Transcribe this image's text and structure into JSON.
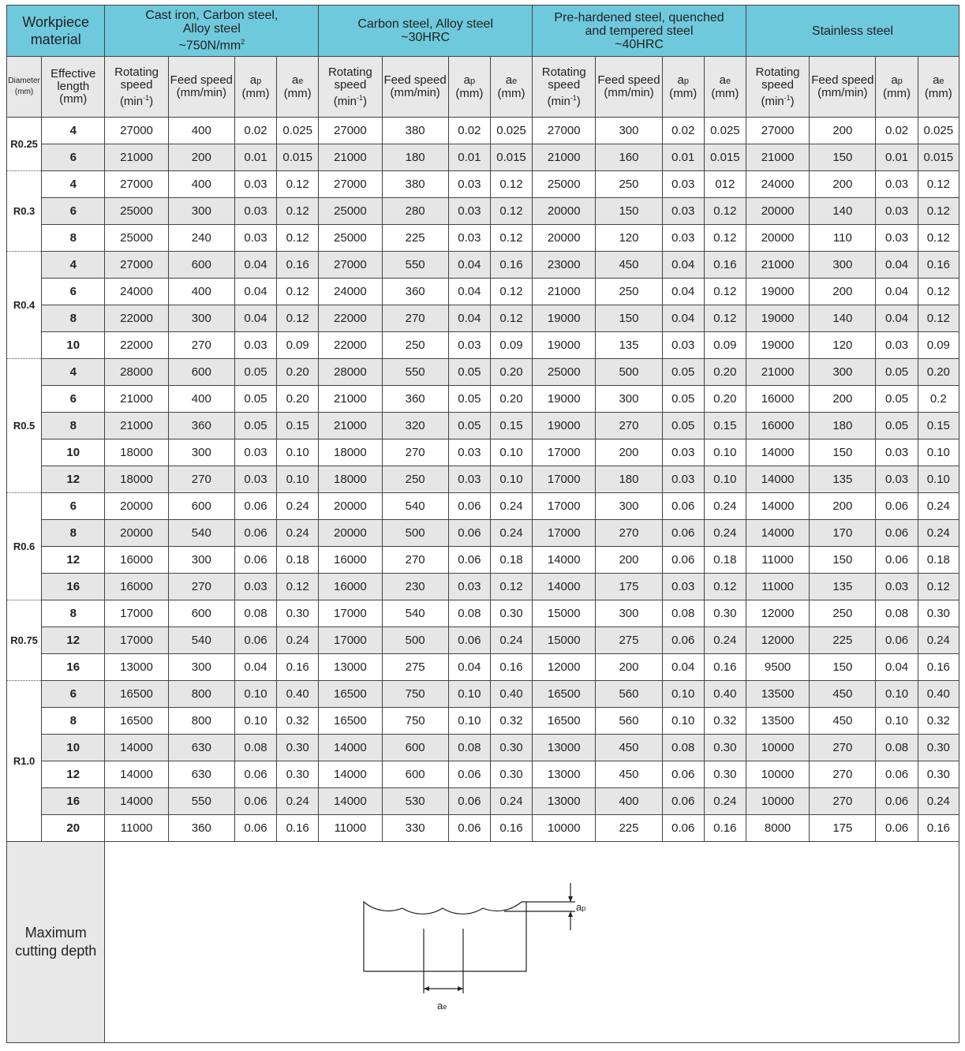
{
  "header": {
    "workpiece_label": "Workpiece material",
    "materials": [
      {
        "line1": "Cast iron, Carbon steel,",
        "line2": "Alloy steel",
        "line3": "~750N/mm",
        "sup": "2"
      },
      {
        "line1": "Carbon steel, Alloy steel",
        "line2": "~30HRC",
        "line3": "",
        "sup": ""
      },
      {
        "line1": "Pre-hardened steel, quenched",
        "line2": "and tempered steel",
        "line3": "~40HRC",
        "sup": ""
      },
      {
        "line1": "Stainless steel",
        "line2": "",
        "line3": "",
        "sup": ""
      }
    ],
    "diameter": "Diameter",
    "diameter_unit": "(mm)",
    "effective_length": "Effective length (mm)",
    "sub": {
      "rotating": "Rotating speed",
      "rotating_unit": "(min",
      "rotating_sup": "-1",
      "feed": "Feed speed",
      "feed_unit": "(mm/min)",
      "ap": "a",
      "ap_sub": "p",
      "ae": "a",
      "ae_sub": "e",
      "mm": "(mm)"
    }
  },
  "rows": [
    {
      "d": "R0.25",
      "l": "4",
      "v": [
        "27000",
        "400",
        "0.02",
        "0.025",
        "27000",
        "380",
        "0.02",
        "0.025",
        "27000",
        "300",
        "0.02",
        "0.025",
        "27000",
        "200",
        "0.02",
        "0.025"
      ]
    },
    {
      "d": "R0.25",
      "l": "6",
      "v": [
        "21000",
        "200",
        "0.01",
        "0.015",
        "21000",
        "180",
        "0.01",
        "0.015",
        "21000",
        "160",
        "0.01",
        "0.015",
        "21000",
        "150",
        "0.01",
        "0.015"
      ]
    },
    {
      "d": "R0.3",
      "l": "4",
      "v": [
        "27000",
        "400",
        "0.03",
        "0.12",
        "27000",
        "380",
        "0.03",
        "0.12",
        "25000",
        "250",
        "0.03",
        "012",
        "24000",
        "200",
        "0.03",
        "0.12"
      ]
    },
    {
      "d": "R0.3",
      "l": "6",
      "v": [
        "25000",
        "300",
        "0.03",
        "0.12",
        "25000",
        "280",
        "0.03",
        "0.12",
        "20000",
        "150",
        "0.03",
        "0.12",
        "20000",
        "140",
        "0.03",
        "0.12"
      ]
    },
    {
      "d": "R0.3",
      "l": "8",
      "v": [
        "25000",
        "240",
        "0.03",
        "0.12",
        "25000",
        "225",
        "0.03",
        "0.12",
        "20000",
        "120",
        "0.03",
        "0.12",
        "20000",
        "110",
        "0.03",
        "0.12"
      ]
    },
    {
      "d": "R0.4",
      "l": "4",
      "v": [
        "27000",
        "600",
        "0.04",
        "0.16",
        "27000",
        "550",
        "0.04",
        "0.16",
        "23000",
        "450",
        "0.04",
        "0.16",
        "21000",
        "300",
        "0.04",
        "0.16"
      ]
    },
    {
      "d": "R0.4",
      "l": "6",
      "v": [
        "24000",
        "400",
        "0.04",
        "0.12",
        "24000",
        "360",
        "0.04",
        "0.12",
        "21000",
        "250",
        "0.04",
        "0.12",
        "19000",
        "200",
        "0.04",
        "0.12"
      ]
    },
    {
      "d": "R0.4",
      "l": "8",
      "v": [
        "22000",
        "300",
        "0.04",
        "0.12",
        "22000",
        "270",
        "0.04",
        "0.12",
        "19000",
        "150",
        "0.04",
        "0.12",
        "19000",
        "140",
        "0.04",
        "0.12"
      ]
    },
    {
      "d": "R0.4",
      "l": "10",
      "v": [
        "22000",
        "270",
        "0.03",
        "0.09",
        "22000",
        "250",
        "0.03",
        "0.09",
        "19000",
        "135",
        "0.03",
        "0.09",
        "19000",
        "120",
        "0.03",
        "0.09"
      ]
    },
    {
      "d": "R0.5",
      "l": "4",
      "v": [
        "28000",
        "600",
        "0.05",
        "0.20",
        "28000",
        "550",
        "0.05",
        "0.20",
        "25000",
        "500",
        "0.05",
        "0.20",
        "21000",
        "300",
        "0.05",
        "0.20"
      ]
    },
    {
      "d": "R0.5",
      "l": "6",
      "v": [
        "21000",
        "400",
        "0.05",
        "0.20",
        "21000",
        "360",
        "0.05",
        "0.20",
        "19000",
        "300",
        "0.05",
        "0.20",
        "16000",
        "200",
        "0.05",
        "0.2"
      ]
    },
    {
      "d": "R0.5",
      "l": "8",
      "v": [
        "21000",
        "360",
        "0.05",
        "0.15",
        "21000",
        "320",
        "0.05",
        "0.15",
        "19000",
        "270",
        "0.05",
        "0.15",
        "16000",
        "180",
        "0.05",
        "0.15"
      ]
    },
    {
      "d": "R0.5",
      "l": "10",
      "v": [
        "18000",
        "300",
        "0.03",
        "0.10",
        "18000",
        "270",
        "0.03",
        "0.10",
        "17000",
        "200",
        "0.03",
        "0.10",
        "14000",
        "150",
        "0.03",
        "0.10"
      ]
    },
    {
      "d": "R0.5",
      "l": "12",
      "v": [
        "18000",
        "270",
        "0.03",
        "0.10",
        "18000",
        "250",
        "0.03",
        "0.10",
        "17000",
        "180",
        "0.03",
        "0.10",
        "14000",
        "135",
        "0.03",
        "0.10"
      ]
    },
    {
      "d": "R0.6",
      "l": "6",
      "v": [
        "20000",
        "600",
        "0.06",
        "0.24",
        "20000",
        "540",
        "0.06",
        "0.24",
        "17000",
        "300",
        "0.06",
        "0.24",
        "14000",
        "200",
        "0.06",
        "0.24"
      ]
    },
    {
      "d": "R0.6",
      "l": "8",
      "v": [
        "20000",
        "540",
        "0.06",
        "0.24",
        "20000",
        "500",
        "0.06",
        "0.24",
        "17000",
        "270",
        "0.06",
        "0.24",
        "14000",
        "170",
        "0.06",
        "0.24"
      ]
    },
    {
      "d": "R0.6",
      "l": "12",
      "v": [
        "16000",
        "300",
        "0.06",
        "0.18",
        "16000",
        "270",
        "0.06",
        "0.18",
        "14000",
        "200",
        "0.06",
        "0.18",
        "11000",
        "150",
        "0.06",
        "0.18"
      ]
    },
    {
      "d": "R0.6",
      "l": "16",
      "v": [
        "16000",
        "270",
        "0.03",
        "0.12",
        "16000",
        "230",
        "0.03",
        "0.12",
        "14000",
        "175",
        "0.03",
        "0.12",
        "11000",
        "135",
        "0.03",
        "0.12"
      ]
    },
    {
      "d": "R0.75",
      "l": "8",
      "v": [
        "17000",
        "600",
        "0.08",
        "0.30",
        "17000",
        "540",
        "0.08",
        "0.30",
        "15000",
        "300",
        "0.08",
        "0.30",
        "12000",
        "250",
        "0.08",
        "0.30"
      ]
    },
    {
      "d": "R0.75",
      "l": "12",
      "v": [
        "17000",
        "540",
        "0.06",
        "0.24",
        "17000",
        "500",
        "0.06",
        "0.24",
        "15000",
        "275",
        "0.06",
        "0.24",
        "12000",
        "225",
        "0.06",
        "0.24"
      ]
    },
    {
      "d": "R0.75",
      "l": "16",
      "v": [
        "13000",
        "300",
        "0.04",
        "0.16",
        "13000",
        "275",
        "0.04",
        "0.16",
        "12000",
        "200",
        "0.04",
        "0.16",
        "9500",
        "150",
        "0.04",
        "0.16"
      ]
    },
    {
      "d": "R1.0",
      "l": "6",
      "v": [
        "16500",
        "800",
        "0.10",
        "0.40",
        "16500",
        "750",
        "0.10",
        "0.40",
        "16500",
        "560",
        "0.10",
        "0.40",
        "13500",
        "450",
        "0.10",
        "0.40"
      ]
    },
    {
      "d": "R1.0",
      "l": "8",
      "v": [
        "16500",
        "800",
        "0.10",
        "0.32",
        "16500",
        "750",
        "0.10",
        "0.32",
        "16500",
        "560",
        "0.10",
        "0.32",
        "13500",
        "450",
        "0.10",
        "0.32"
      ]
    },
    {
      "d": "R1.0",
      "l": "10",
      "v": [
        "14000",
        "630",
        "0.08",
        "0.30",
        "14000",
        "600",
        "0.08",
        "0.30",
        "13000",
        "450",
        "0.08",
        "0.30",
        "10000",
        "270",
        "0.08",
        "0.30"
      ]
    },
    {
      "d": "R1.0",
      "l": "12",
      "v": [
        "14000",
        "630",
        "0.06",
        "0.30",
        "14000",
        "600",
        "0.06",
        "0.30",
        "13000",
        "450",
        "0.06",
        "0.30",
        "10000",
        "270",
        "0.06",
        "0.30"
      ]
    },
    {
      "d": "R1.0",
      "l": "16",
      "v": [
        "14000",
        "550",
        "0.06",
        "0.24",
        "14000",
        "530",
        "0.06",
        "0.24",
        "13000",
        "400",
        "0.06",
        "0.24",
        "10000",
        "270",
        "0.06",
        "0.24"
      ]
    },
    {
      "d": "R1.0",
      "l": "20",
      "v": [
        "11000",
        "360",
        "0.06",
        "0.16",
        "11000",
        "330",
        "0.06",
        "0.16",
        "10000",
        "225",
        "0.06",
        "0.16",
        "8000",
        "175",
        "0.06",
        "0.16"
      ]
    }
  ],
  "footer": {
    "label": "Maximum cutting depth",
    "diagram": {
      "ap_letter": "a",
      "ap_sub": "p",
      "ae_letter": "a",
      "ae_sub": "e"
    }
  },
  "colors": {
    "header_bg": "#6fc9dc",
    "subheader_bg": "#e8e8e8",
    "alt_row_bg": "#e6e6e6"
  }
}
